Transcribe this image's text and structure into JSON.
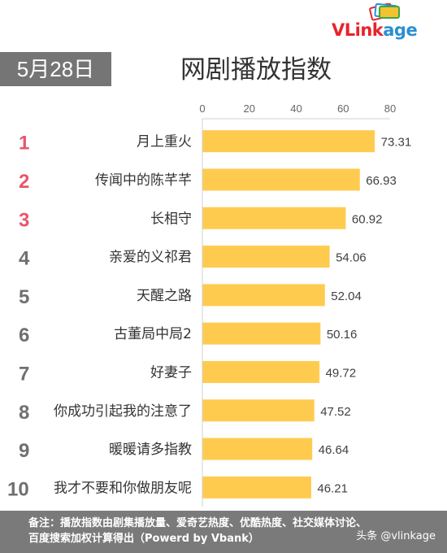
{
  "header": {
    "date_label": "5月28日",
    "title": "网剧播放指数",
    "logo": {
      "part1": "VL",
      "part2": "ink",
      "part3": "age"
    }
  },
  "chart_data": {
    "type": "bar",
    "orientation": "horizontal",
    "title": "网剧播放指数",
    "categories": [
      "月上重火",
      "传闻中的陈芊芊",
      "长相守",
      "亲爱的义祁君",
      "天醒之路",
      "古董局中局2",
      "好妻子",
      "你成功引起我的注意了",
      "暖暖请多指教",
      "我才不要和你做朋友呢"
    ],
    "ranks": [
      "1",
      "2",
      "3",
      "4",
      "5",
      "6",
      "7",
      "8",
      "9",
      "10"
    ],
    "values": [
      73.31,
      66.93,
      60.92,
      54.06,
      52.04,
      50.16,
      49.72,
      47.52,
      46.64,
      46.21
    ],
    "value_labels": [
      "73.31",
      "66.93",
      "60.92",
      "54.06",
      "52.04",
      "50.16",
      "49.72",
      "47.52",
      "46.64",
      "46.21"
    ],
    "xlim": [
      0,
      80
    ],
    "xticks": [
      0,
      20,
      40,
      60,
      80
    ],
    "xtick_labels": [
      "0",
      "20",
      "40",
      "60",
      "80"
    ],
    "axis_position": "top",
    "grid": false,
    "bar_color": "#ffcb4f",
    "rank_colors": {
      "top3": "#e8566a",
      "rest": "#707070"
    }
  },
  "footer": {
    "line1": "备注：播放指数由剧集播放量、爱奇艺热度、优酷热度、社交媒体讨论、",
    "line2": "百度搜索加权计算得出（Powerd by Vbank）",
    "watermark": "头条 @vlinkage"
  }
}
